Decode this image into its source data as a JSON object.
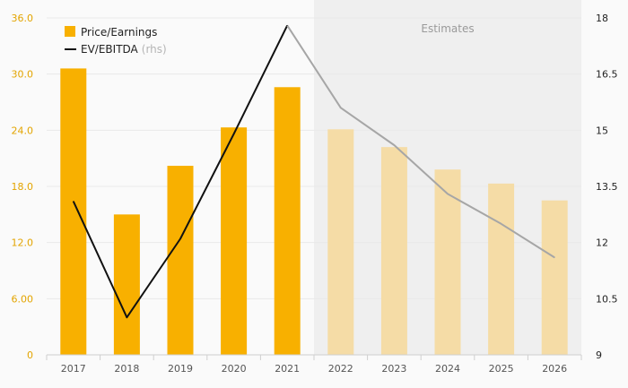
{
  "chart_data": {
    "type": "bar",
    "categories": [
      "2017",
      "2018",
      "2019",
      "2020",
      "2021",
      "2022",
      "2023",
      "2024",
      "2025",
      "2026"
    ],
    "estimate_start_index": 5,
    "estimates_label": "Estimates",
    "series": [
      {
        "name": "Price/Earnings",
        "type": "bar",
        "axis": "left",
        "values": [
          30.6,
          15.0,
          20.2,
          24.3,
          28.6,
          24.1,
          22.2,
          19.8,
          18.3,
          16.5
        ]
      },
      {
        "name": "EV/EBITDA",
        "name_suffix": "(rhs)",
        "type": "line",
        "axis": "right",
        "values": [
          13.1,
          10.0,
          12.1,
          14.9,
          17.8,
          15.6,
          14.6,
          13.3,
          12.5,
          11.6
        ]
      }
    ],
    "y_left": {
      "range": [
        0,
        36
      ],
      "ticks": [
        0,
        6,
        12,
        18,
        24,
        30,
        36
      ],
      "tick_labels": [
        "0",
        "6.00",
        "12.0",
        "18.0",
        "24.0",
        "30.0",
        "36.0"
      ]
    },
    "y_right": {
      "range": [
        9,
        18
      ],
      "ticks": [
        9,
        10.5,
        12,
        13.5,
        15,
        16.5,
        18
      ],
      "tick_labels": [
        "9",
        "10.5",
        "12",
        "13.5",
        "15",
        "16.5",
        "18"
      ]
    },
    "legend_position": "top-left",
    "grid": true,
    "colors": {
      "bar_actual": "#f8b000",
      "bar_estimate": "#f5dca6",
      "line_actual": "#111111",
      "line_estimate": "#a6a6a6",
      "estimate_band": "#efefef",
      "left_axis_text": "#e3a400",
      "right_axis_text": "#222222",
      "x_axis_text": "#555555",
      "grid": "#e9e9e9",
      "axis_line": "#cfcfcf"
    }
  }
}
